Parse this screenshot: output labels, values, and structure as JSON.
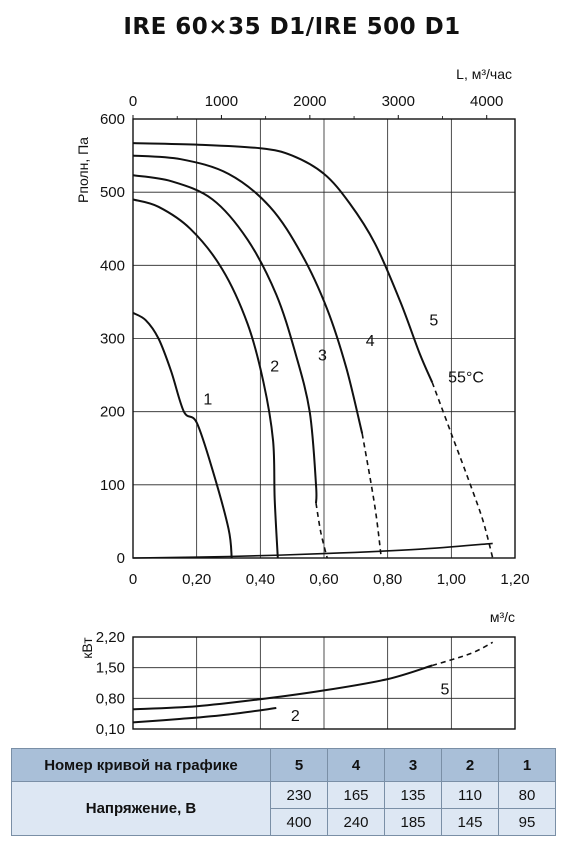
{
  "title": "IRE 60×35 D1/IRE 500 D1",
  "chart_data": [
    {
      "type": "line",
      "xlabel": "м³/с",
      "x2label": "L, м³/час",
      "ylabel": "Pполн, Па",
      "xlim": [
        0,
        1.2
      ],
      "x2lim": [
        0,
        4320
      ],
      "ylim": [
        0,
        600
      ],
      "x_ticks": [
        "0",
        "0,20",
        "0,40",
        "0,60",
        "0,80",
        "1,00",
        "1,20"
      ],
      "x2_ticks": [
        "0",
        "1000",
        "2000",
        "3000",
        "4000"
      ],
      "y_ticks": [
        "0",
        "100",
        "200",
        "300",
        "400",
        "500",
        "600"
      ],
      "grid": true,
      "annotations": [
        "55°C"
      ],
      "series": [
        {
          "name": "1",
          "solid": [
            [
              0.0,
              335
            ],
            [
              0.04,
              325
            ],
            [
              0.08,
              300
            ],
            [
              0.12,
              255
            ],
            [
              0.16,
              200
            ],
            [
              0.2,
              185
            ],
            [
              0.25,
              120
            ],
            [
              0.3,
              40
            ],
            [
              0.31,
              0
            ]
          ],
          "dashed": []
        },
        {
          "name": "2",
          "solid": [
            [
              0.0,
              490
            ],
            [
              0.08,
              480
            ],
            [
              0.18,
              450
            ],
            [
              0.28,
              395
            ],
            [
              0.36,
              320
            ],
            [
              0.41,
              240
            ],
            [
              0.44,
              160
            ],
            [
              0.445,
              80
            ],
            [
              0.455,
              0
            ]
          ],
          "dashed": []
        },
        {
          "name": "3",
          "solid": [
            [
              0.0,
              523
            ],
            [
              0.12,
              515
            ],
            [
              0.25,
              490
            ],
            [
              0.36,
              435
            ],
            [
              0.45,
              360
            ],
            [
              0.51,
              280
            ],
            [
              0.555,
              200
            ],
            [
              0.575,
              100
            ],
            [
              0.575,
              75
            ]
          ],
          "dashed": [
            [
              0.575,
              75
            ],
            [
              0.59,
              35
            ],
            [
              0.61,
              0
            ]
          ]
        },
        {
          "name": "4",
          "solid": [
            [
              0.0,
              550
            ],
            [
              0.15,
              545
            ],
            [
              0.3,
              525
            ],
            [
              0.43,
              480
            ],
            [
              0.53,
              415
            ],
            [
              0.61,
              340
            ],
            [
              0.67,
              260
            ],
            [
              0.72,
              170
            ]
          ],
          "dashed": [
            [
              0.72,
              170
            ],
            [
              0.76,
              70
            ],
            [
              0.78,
              0
            ]
          ]
        },
        {
          "name": "5",
          "solid": [
            [
              0.0,
              567
            ],
            [
              0.2,
              565
            ],
            [
              0.4,
              560
            ],
            [
              0.5,
              550
            ],
            [
              0.6,
              525
            ],
            [
              0.68,
              485
            ],
            [
              0.76,
              430
            ],
            [
              0.84,
              350
            ],
            [
              0.9,
              280
            ],
            [
              0.94,
              240
            ]
          ],
          "dashed": [
            [
              0.94,
              240
            ],
            [
              1.0,
              170
            ],
            [
              1.06,
              100
            ],
            [
              1.1,
              50
            ],
            [
              1.13,
              0
            ]
          ]
        }
      ],
      "system_line": [
        [
          0.0,
          0
        ],
        [
          0.3,
          2
        ],
        [
          0.6,
          6
        ],
        [
          0.9,
          12
        ],
        [
          1.13,
          20
        ]
      ]
    },
    {
      "type": "line",
      "ylabel": "кВт",
      "xlim": [
        0,
        1.2
      ],
      "ylim": [
        0.1,
        2.2
      ],
      "y_ticks": [
        "2,20",
        "1,50",
        "0,80",
        "0,10"
      ],
      "grid": true,
      "series": [
        {
          "name": "5",
          "solid": [
            [
              0.0,
              0.55
            ],
            [
              0.2,
              0.62
            ],
            [
              0.4,
              0.78
            ],
            [
              0.6,
              0.98
            ],
            [
              0.8,
              1.24
            ],
            [
              0.94,
              1.55
            ]
          ],
          "dashed": [
            [
              0.94,
              1.55
            ],
            [
              1.06,
              1.82
            ],
            [
              1.13,
              2.08
            ]
          ]
        },
        {
          "name": "2",
          "solid": [
            [
              0.0,
              0.25
            ],
            [
              0.15,
              0.33
            ],
            [
              0.3,
              0.43
            ],
            [
              0.45,
              0.58
            ]
          ],
          "dashed": []
        }
      ]
    }
  ],
  "table": {
    "header_label": "Номер кривой на графике",
    "curves": [
      "5",
      "4",
      "3",
      "2",
      "1"
    ],
    "row_label": "Напряжение, В",
    "voltages_1": [
      "230",
      "165",
      "135",
      "110",
      "80"
    ],
    "voltages_2": [
      "400",
      "240",
      "185",
      "145",
      "95"
    ]
  }
}
